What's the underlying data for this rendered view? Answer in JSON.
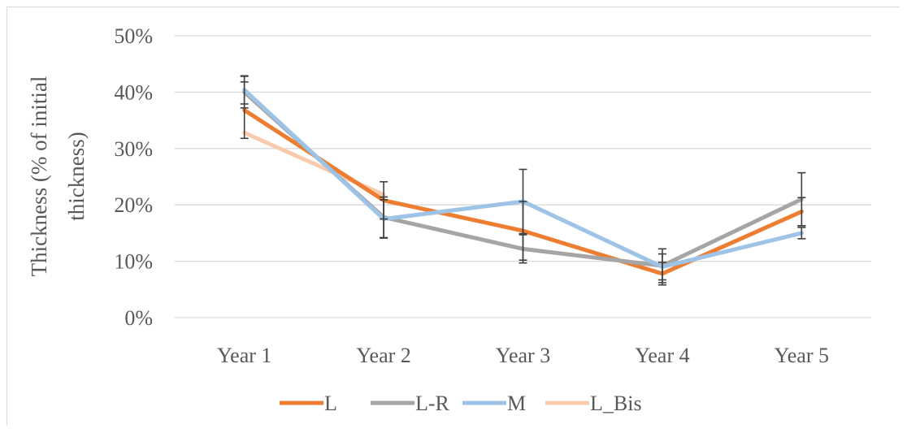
{
  "chart_data": {
    "type": "line",
    "categories": [
      "Year 1",
      "Year 2",
      "Year 3",
      "Year 4",
      "Year 5"
    ],
    "ylabel_lines": [
      "Thickness (% of initial",
      "thickness)"
    ],
    "ylim": [
      0,
      50
    ],
    "yticks": [
      "0%",
      "10%",
      "20%",
      "30%",
      "40%",
      "50%"
    ],
    "ytick_values": [
      0,
      10,
      20,
      30,
      40,
      50
    ],
    "grid": true,
    "legend_position": "bottom",
    "series": [
      {
        "name": "L",
        "color": "#ED7D31",
        "values": [
          36.8,
          20.8,
          15.4,
          7.8,
          18.8
        ],
        "errors": [
          5.0,
          3.3,
          5.2,
          2.0,
          2.5
        ]
      },
      {
        "name": "L-R",
        "color": "#A5A5A5",
        "values": [
          40.0,
          17.8,
          12.2,
          9.2,
          21.0
        ],
        "errors": [
          2.8,
          3.6,
          2.5,
          3.0,
          4.7
        ]
      },
      {
        "name": "M",
        "color": "#9DC3E6",
        "values": [
          40.4,
          17.5,
          20.6,
          9.0,
          15.0
        ],
        "errors": [
          2.5,
          3.4,
          5.7,
          2.3,
          1.0
        ]
      },
      {
        "name": "L_Bis",
        "color": "#F8CBAD",
        "values": [
          32.8,
          21.8,
          null,
          null,
          null
        ],
        "errors": [
          0,
          0,
          0,
          0,
          0
        ]
      }
    ]
  }
}
